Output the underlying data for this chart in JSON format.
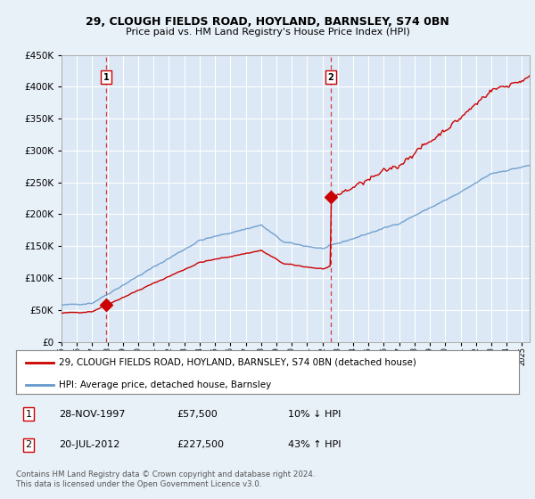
{
  "title": "29, CLOUGH FIELDS ROAD, HOYLAND, BARNSLEY, S74 0BN",
  "subtitle": "Price paid vs. HM Land Registry's House Price Index (HPI)",
  "background_color": "#e8f0f8",
  "plot_bg_color": "#dce8f5",
  "grid_color": "#ffffff",
  "red_line_color": "#cc0000",
  "blue_line_color": "#6699cc",
  "sale1_year": 1997.92,
  "sale1_price": 57500,
  "sale1_label": "1",
  "sale2_year": 2012.55,
  "sale2_price": 227500,
  "sale2_label": "2",
  "legend_line1": "29, CLOUGH FIELDS ROAD, HOYLAND, BARNSLEY, S74 0BN (detached house)",
  "legend_line2": "HPI: Average price, detached house, Barnsley",
  "sale1_date": "28-NOV-1997",
  "sale1_price_str": "£57,500",
  "sale1_hpi": "10% ↓ HPI",
  "sale2_date": "20-JUL-2012",
  "sale2_price_str": "£227,500",
  "sale2_hpi": "43% ↑ HPI",
  "footer": "Contains HM Land Registry data © Crown copyright and database right 2024.\nThis data is licensed under the Open Government Licence v3.0.",
  "ylim": [
    0,
    450000
  ],
  "xlim_start": 1995,
  "xlim_end": 2025.5
}
